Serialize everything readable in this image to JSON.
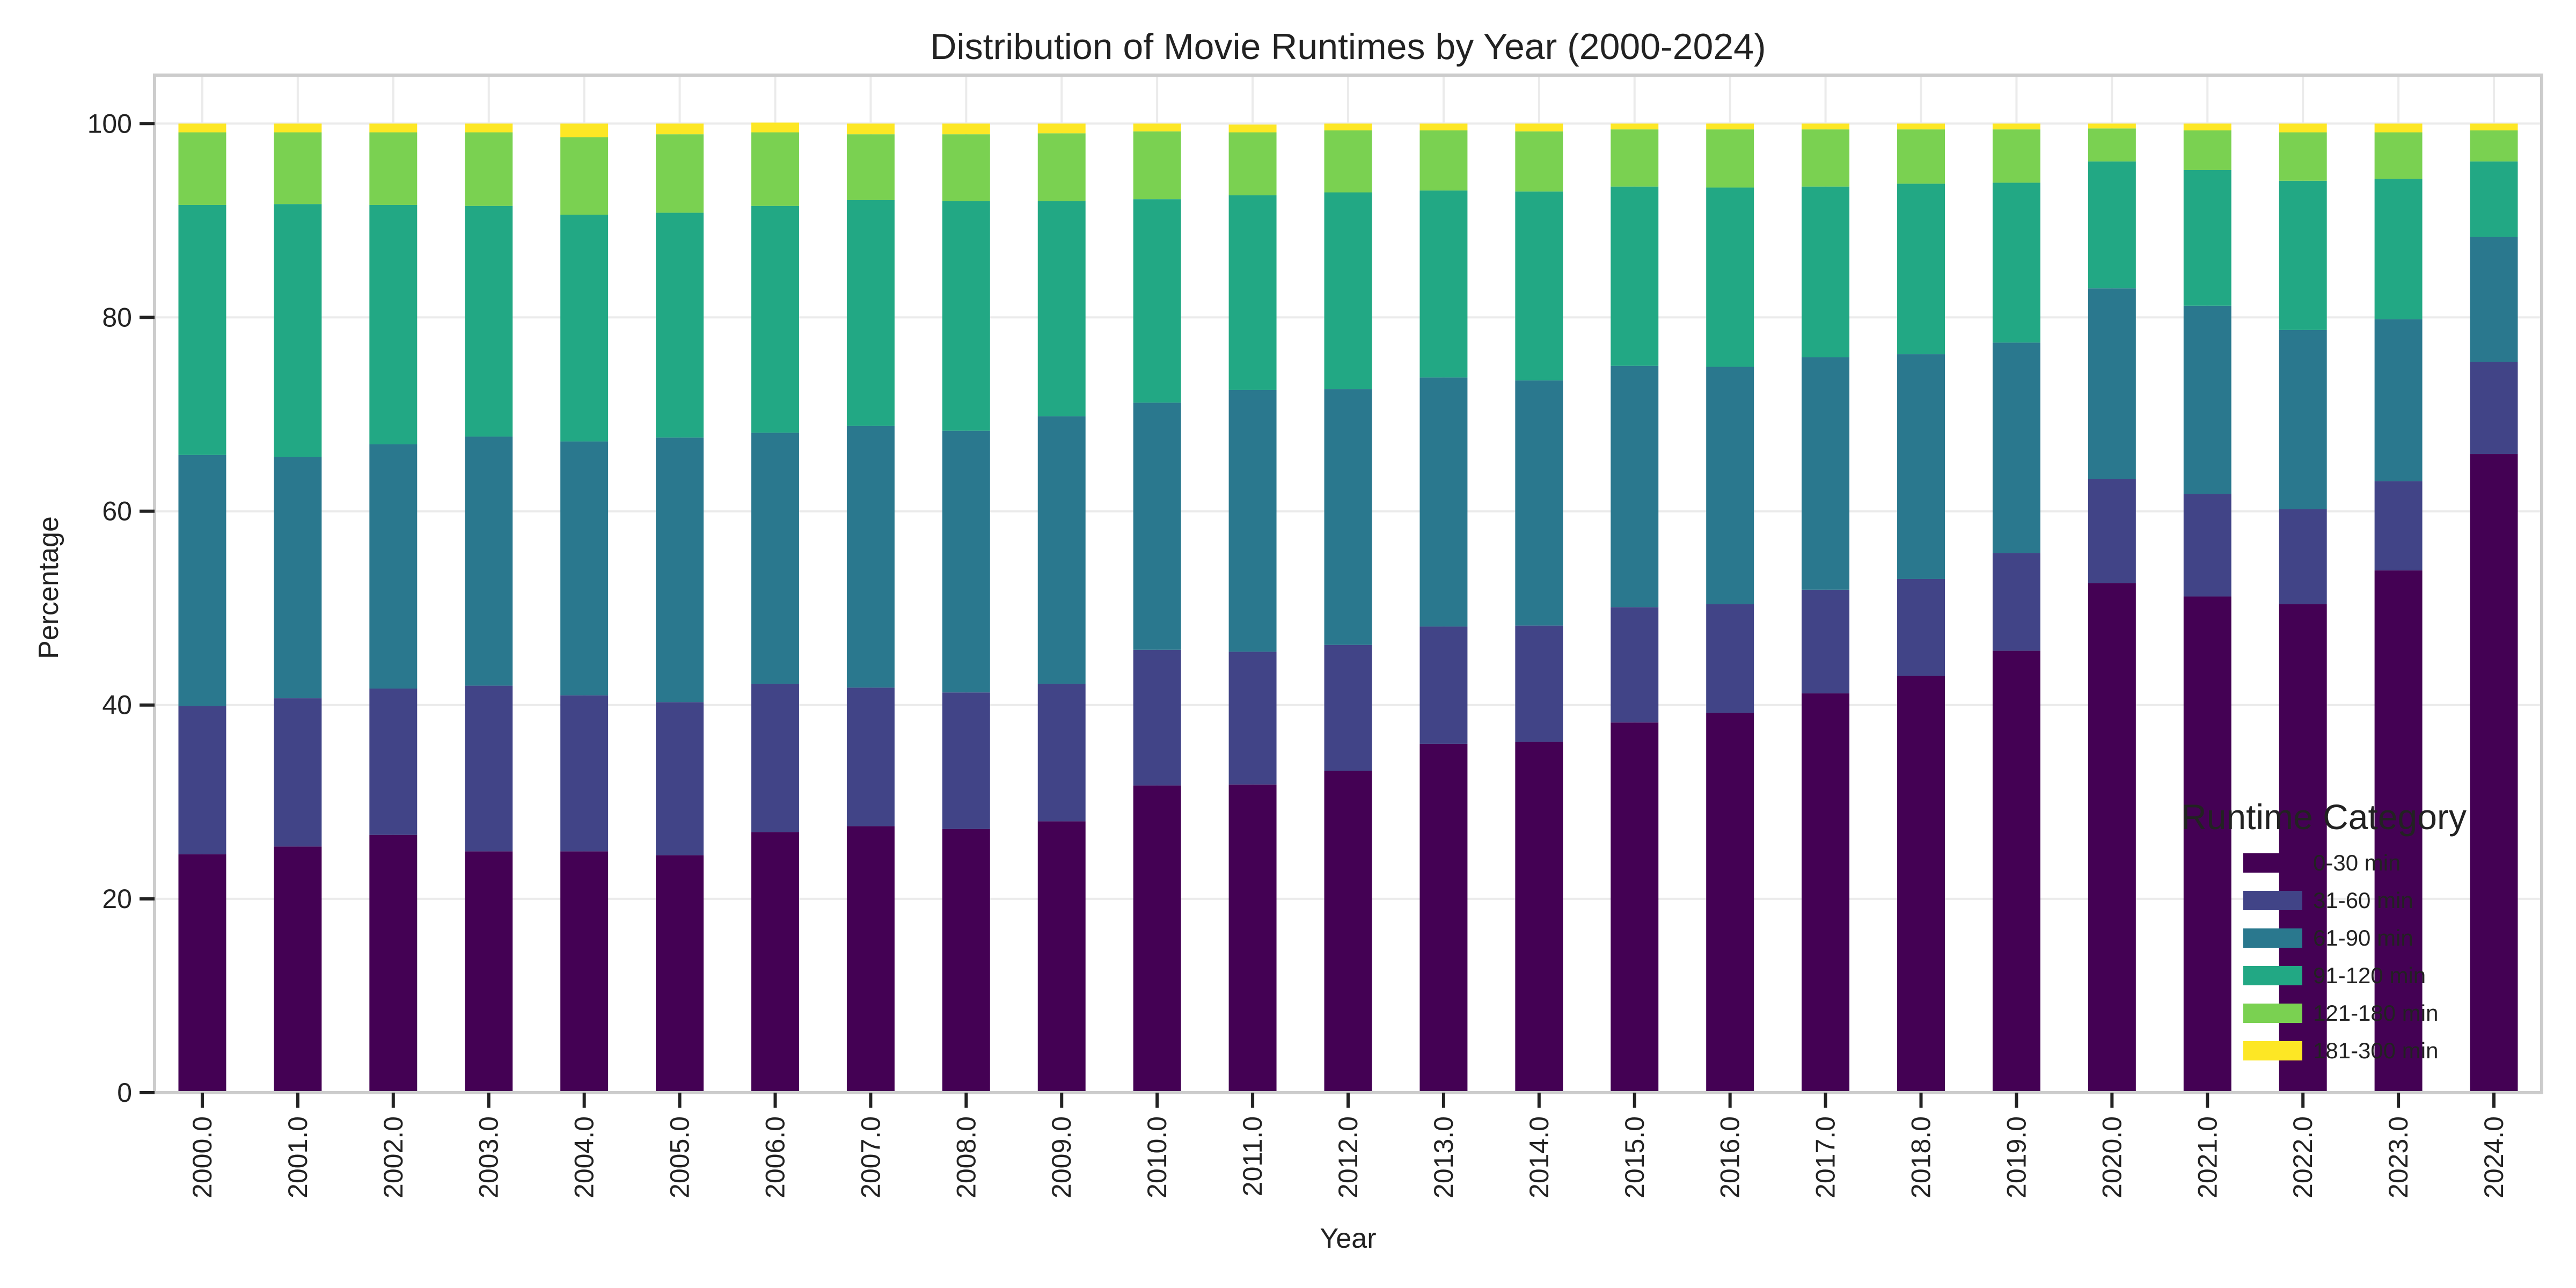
{
  "chart_data": {
    "type": "bar",
    "stacked": true,
    "title": "Distribution of Movie Runtimes by Year (2000-2024)",
    "xlabel": "Year",
    "ylabel": "Percentage",
    "ylim": [
      0,
      105
    ],
    "yticks": [
      0,
      20,
      40,
      60,
      80,
      100
    ],
    "grid": true,
    "categories": [
      "2000.0",
      "2001.0",
      "2002.0",
      "2003.0",
      "2004.0",
      "2005.0",
      "2006.0",
      "2007.0",
      "2008.0",
      "2009.0",
      "2010.0",
      "2011.0",
      "2012.0",
      "2013.0",
      "2014.0",
      "2015.0",
      "2016.0",
      "2017.0",
      "2018.0",
      "2019.0",
      "2020.0",
      "2021.0",
      "2022.0",
      "2023.0",
      "2024.0"
    ],
    "series": [
      {
        "name": "0-30 min",
        "color": "#440154",
        "values": [
          24.6,
          25.4,
          26.6,
          24.9,
          24.9,
          24.5,
          26.9,
          27.5,
          27.2,
          28.0,
          31.7,
          31.8,
          33.2,
          36.0,
          36.2,
          38.2,
          39.2,
          41.2,
          43.0,
          45.6,
          52.6,
          51.2,
          50.4,
          53.9,
          65.9
        ]
      },
      {
        "name": "31-60 min",
        "color": "#414487",
        "values": [
          15.3,
          15.3,
          15.1,
          17.1,
          16.1,
          15.8,
          15.3,
          14.3,
          14.1,
          14.2,
          14.0,
          13.7,
          13.0,
          12.1,
          12.0,
          11.9,
          11.2,
          10.7,
          10.0,
          10.1,
          10.7,
          10.6,
          9.8,
          9.2,
          9.5
        ]
      },
      {
        "name": "61-90 min",
        "color": "#2a788e",
        "values": [
          25.9,
          24.9,
          25.2,
          25.7,
          26.2,
          27.3,
          25.9,
          27.0,
          27.0,
          27.6,
          25.5,
          27.0,
          26.4,
          25.7,
          25.3,
          24.9,
          24.5,
          24.0,
          23.2,
          21.7,
          19.7,
          19.4,
          18.5,
          16.7,
          12.9
        ]
      },
      {
        "name": "91-120 min",
        "color": "#22a884",
        "values": [
          25.8,
          26.1,
          24.7,
          23.8,
          23.4,
          23.2,
          23.4,
          23.3,
          23.7,
          22.2,
          21.0,
          20.1,
          20.3,
          19.3,
          19.5,
          18.5,
          18.5,
          17.6,
          17.6,
          16.5,
          13.1,
          14.0,
          15.4,
          14.5,
          7.8
        ]
      },
      {
        "name": "121-180 min",
        "color": "#7ad151",
        "values": [
          7.5,
          7.4,
          7.5,
          7.6,
          8.0,
          8.1,
          7.6,
          6.8,
          6.9,
          7.0,
          7.0,
          6.5,
          6.4,
          6.2,
          6.2,
          5.9,
          6.0,
          5.9,
          5.6,
          5.5,
          3.4,
          4.1,
          5.0,
          4.8,
          3.2
        ]
      },
      {
        "name": "181-300 min",
        "color": "#fde725",
        "values": [
          0.9,
          0.9,
          0.9,
          0.9,
          1.4,
          1.1,
          1.0,
          1.1,
          1.1,
          1.0,
          0.8,
          0.8,
          0.7,
          0.7,
          0.8,
          0.6,
          0.6,
          0.6,
          0.6,
          0.6,
          0.5,
          0.7,
          0.9,
          0.9,
          0.7
        ]
      }
    ],
    "legend": {
      "title": "Runtime Category",
      "placement": "lower right"
    }
  }
}
